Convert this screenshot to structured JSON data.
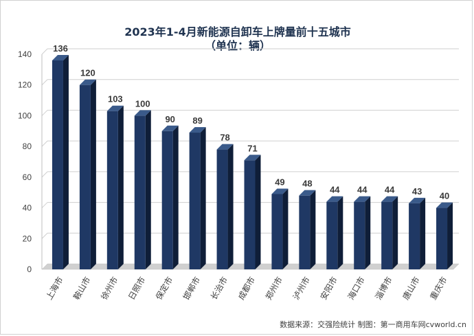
{
  "chart_data": {
    "type": "bar",
    "title": "2023年1-4月新能源自卸车上牌量前十五城市",
    "subtitle": "（单位：辆）",
    "categories": [
      "上海市",
      "鞍山市",
      "徐州市",
      "日照市",
      "保定市",
      "邯郸市",
      "长治市",
      "成都市",
      "郑州市",
      "泸州市",
      "安阳市",
      "海口市",
      "淄博市",
      "唐山市",
      "重庆市"
    ],
    "values": [
      136,
      120,
      103,
      100,
      90,
      89,
      78,
      71,
      49,
      48,
      44,
      44,
      44,
      43,
      40
    ],
    "ylim": [
      0,
      140
    ],
    "yticks": [
      "0",
      "20",
      "40",
      "60",
      "80",
      "100",
      "120",
      "140"
    ],
    "grid": true,
    "legend": "none",
    "source": "数据来源：交强险统计  制图：第一商用车网cvworld.cn",
    "colors": {
      "bar_front": "#1f3864",
      "bar_side": "#0f1e38",
      "bar_top": "#3a5a8a",
      "wall": "#d0d0d0",
      "grid": "#cfcfcf"
    }
  }
}
